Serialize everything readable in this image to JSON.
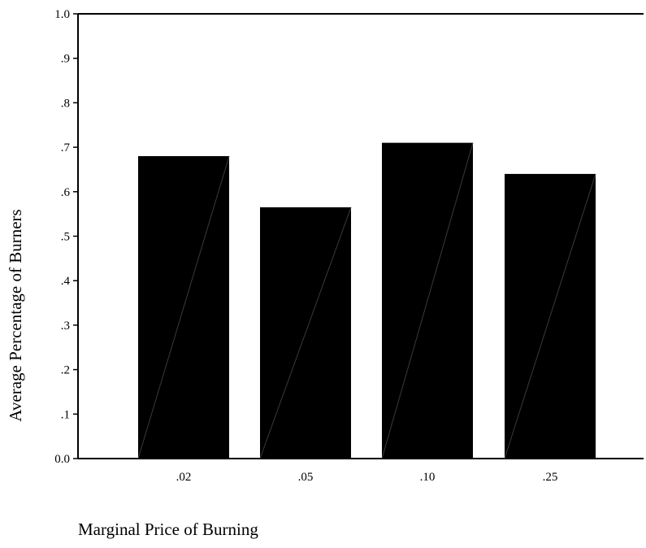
{
  "chart_data": {
    "type": "bar",
    "title": "",
    "xlabel": "Marginal Price of Burning",
    "ylabel": "Average Percentage of Burners",
    "categories": [
      ".02",
      ".05",
      ".10",
      ".25"
    ],
    "values": [
      0.68,
      0.565,
      0.71,
      0.64
    ],
    "ylim": [
      0,
      1.0
    ],
    "y_ticks": [
      {
        "value": 0.0,
        "label": "0.0"
      },
      {
        "value": 0.1,
        "label": ".1"
      },
      {
        "value": 0.2,
        "label": ".2"
      },
      {
        "value": 0.3,
        "label": ".3"
      },
      {
        "value": 0.4,
        "label": ".4"
      },
      {
        "value": 0.5,
        "label": ".5"
      },
      {
        "value": 0.6,
        "label": ".6"
      },
      {
        "value": 0.7,
        "label": ".7"
      },
      {
        "value": 0.8,
        "label": ".8"
      },
      {
        "value": 0.9,
        "label": ".9"
      },
      {
        "value": 1.0,
        "label": "1.0"
      }
    ],
    "grid": false,
    "bar_color": "#000000"
  }
}
